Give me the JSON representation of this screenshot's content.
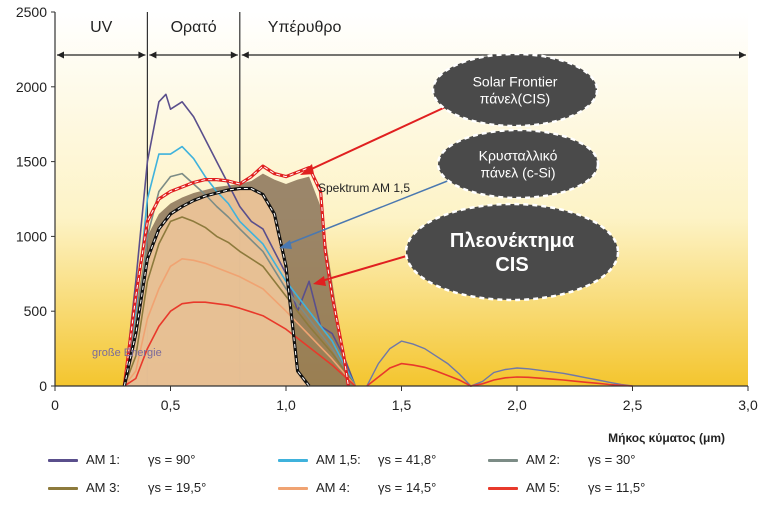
{
  "chart_data": {
    "type": "line",
    "xlabel": "Μήκος κύματος (μm)",
    "ylabel": "",
    "xlim": [
      0,
      3.0
    ],
    "ylim": [
      0,
      2500
    ],
    "xticks": [
      "0",
      "0,5",
      "1,0",
      "1,5",
      "2,0",
      "2,5",
      "3,0"
    ],
    "yticks": [
      "0",
      "500",
      "1000",
      "1500",
      "2000",
      "2500"
    ],
    "regions": [
      {
        "label": "UV",
        "from": 0,
        "to": 0.4
      },
      {
        "label": "Ορατό",
        "from": 0.4,
        "to": 0.8
      },
      {
        "label": "Υπέρυθρο",
        "from": 0.8,
        "to": 3.0
      }
    ],
    "annotations": {
      "cis_panel": "Solar Frontier πάνελ(CIS)",
      "csi_panel": "Κρυσταλλικό πάνελ (c-Si)",
      "advantage": "Πλεονέκτημα CIS",
      "spectrum": "Spektrum AM 1,5",
      "energy": "große Energie"
    },
    "series": [
      {
        "name": "AM 1",
        "gamma": "γs = 90°",
        "color": "#5a4f8c",
        "x": [
          0.3,
          0.35,
          0.4,
          0.45,
          0.48,
          0.5,
          0.55,
          0.6,
          0.65,
          0.7,
          0.75,
          0.8,
          0.85,
          0.9,
          0.95,
          1.0,
          1.05,
          1.1,
          1.15,
          1.2,
          1.25,
          1.3
        ],
        "values": [
          0,
          700,
          1500,
          1900,
          1950,
          1850,
          1900,
          1800,
          1650,
          1500,
          1350,
          1200,
          1100,
          1050,
          900,
          750,
          500,
          700,
          400,
          350,
          200,
          0
        ]
      },
      {
        "name": "AM 1,5",
        "gamma": "γs = 41,8°",
        "color": "#3fb2dc",
        "x": [
          0.3,
          0.35,
          0.4,
          0.45,
          0.5,
          0.55,
          0.6,
          0.65,
          0.7,
          0.75,
          0.8,
          0.9,
          1.0,
          1.1,
          1.2,
          1.3
        ],
        "values": [
          0,
          500,
          1250,
          1550,
          1550,
          1600,
          1520,
          1400,
          1300,
          1220,
          1100,
          950,
          700,
          500,
          300,
          0
        ]
      },
      {
        "name": "AM 2",
        "gamma": "γs = 30°",
        "color": "#7c8c86",
        "x": [
          0.3,
          0.35,
          0.4,
          0.45,
          0.5,
          0.55,
          0.6,
          0.65,
          0.7,
          0.75,
          0.8,
          0.9,
          1.0,
          1.1,
          1.2,
          1.3
        ],
        "values": [
          0,
          350,
          1000,
          1300,
          1400,
          1420,
          1350,
          1280,
          1200,
          1130,
          1050,
          900,
          650,
          450,
          250,
          0
        ]
      },
      {
        "name": "AM 3",
        "gamma": "γs = 19,5°",
        "color": "#8d7a3c",
        "x": [
          0.3,
          0.35,
          0.4,
          0.45,
          0.5,
          0.55,
          0.6,
          0.65,
          0.7,
          0.75,
          0.8,
          0.9,
          1.0,
          1.1,
          1.2,
          1.3
        ],
        "values": [
          0,
          200,
          700,
          950,
          1100,
          1130,
          1100,
          1060,
          1000,
          960,
          900,
          800,
          600,
          400,
          220,
          0
        ]
      },
      {
        "name": "AM 4",
        "gamma": "γs = 14,5°",
        "color": "#f0a372",
        "x": [
          0.3,
          0.35,
          0.4,
          0.45,
          0.5,
          0.55,
          0.6,
          0.65,
          0.7,
          0.75,
          0.8,
          0.9,
          1.0,
          1.1,
          1.2,
          1.3
        ],
        "values": [
          0,
          100,
          450,
          650,
          800,
          850,
          840,
          820,
          790,
          760,
          730,
          650,
          500,
          340,
          180,
          0
        ]
      },
      {
        "name": "AM 5",
        "gamma": "γs = 11,5°",
        "color": "#e8392b",
        "x": [
          0.3,
          0.35,
          0.4,
          0.45,
          0.5,
          0.55,
          0.6,
          0.65,
          0.7,
          0.75,
          0.8,
          0.9,
          1.0,
          1.1,
          1.2,
          1.3
        ],
        "values": [
          0,
          50,
          250,
          400,
          500,
          550,
          560,
          560,
          550,
          540,
          520,
          470,
          380,
          260,
          140,
          0
        ]
      }
    ],
    "spectrum_am15": {
      "x": [
        0.3,
        0.35,
        0.4,
        0.45,
        0.5,
        0.55,
        0.6,
        0.65,
        0.7,
        0.75,
        0.8,
        0.85,
        0.9,
        0.95,
        1.0,
        1.05,
        1.1,
        1.15,
        1.17,
        1.2,
        1.25,
        1.27
      ],
      "values": [
        0,
        600,
        1100,
        1250,
        1300,
        1330,
        1360,
        1380,
        1380,
        1370,
        1350,
        1400,
        1470,
        1420,
        1400,
        1430,
        1460,
        1300,
        900,
        600,
        200,
        0
      ]
    },
    "csi_response": {
      "x": [
        0.3,
        0.35,
        0.4,
        0.45,
        0.5,
        0.55,
        0.6,
        0.65,
        0.7,
        0.75,
        0.8,
        0.85,
        0.9,
        0.95,
        1.0,
        1.05,
        1.1
      ],
      "values": [
        0,
        350,
        850,
        1050,
        1150,
        1200,
        1240,
        1270,
        1290,
        1310,
        1320,
        1320,
        1280,
        1150,
        800,
        100,
        0
      ]
    },
    "cis_response": {
      "x": [
        0.3,
        0.35,
        0.4,
        0.45,
        0.5,
        0.55,
        0.6,
        0.65,
        0.7,
        0.75,
        0.8,
        0.85,
        0.9,
        0.95,
        1.0,
        1.05,
        1.1,
        1.15,
        1.2,
        1.25,
        1.3
      ],
      "values": [
        0,
        500,
        1000,
        1150,
        1220,
        1260,
        1290,
        1310,
        1330,
        1340,
        1350,
        1370,
        1420,
        1380,
        1350,
        1380,
        1400,
        1200,
        700,
        200,
        0
      ]
    },
    "bumps": {
      "x": [
        1.35,
        1.4,
        1.45,
        1.5,
        1.55,
        1.6,
        1.65,
        1.7,
        1.75,
        1.8,
        1.85,
        1.9,
        1.95,
        2.0,
        2.05,
        2.1,
        2.15,
        2.2,
        2.25,
        2.3,
        2.35,
        2.4,
        2.45,
        2.5
      ],
      "AM1": [
        0,
        150,
        250,
        300,
        280,
        250,
        200,
        150,
        80,
        0,
        30,
        90,
        110,
        120,
        115,
        105,
        95,
        85,
        70,
        55,
        40,
        25,
        10,
        0
      ],
      "AM5": [
        0,
        60,
        120,
        150,
        140,
        125,
        100,
        70,
        40,
        0,
        15,
        40,
        55,
        60,
        58,
        52,
        46,
        40,
        32,
        25,
        18,
        10,
        5,
        0
      ]
    }
  },
  "legend": [
    {
      "name": "AM 1:",
      "gamma": "γs = 90°",
      "color": "#5a4f8c"
    },
    {
      "name": "AM 1,5:",
      "gamma": "γs = 41,8°",
      "color": "#3fb2dc"
    },
    {
      "name": "AM 2:",
      "gamma": "γs = 30°",
      "color": "#7c8c86"
    },
    {
      "name": "AM 3:",
      "gamma": "γs = 19,5°",
      "color": "#8d7a3c"
    },
    {
      "name": "AM 4:",
      "gamma": "γs = 14,5°",
      "color": "#f0a372"
    },
    {
      "name": "AM 5:",
      "gamma": "γs = 11,5°",
      "color": "#e8392b"
    }
  ],
  "colors": {
    "bg_top": "#ffffff",
    "bg_bottom": "#f4c52e",
    "cis_fill": "#8a7258",
    "csi_fill": "#f0c79a",
    "cis_line": "#e02020",
    "csi_line": "#111111",
    "bubble": "#4a4a4a"
  }
}
